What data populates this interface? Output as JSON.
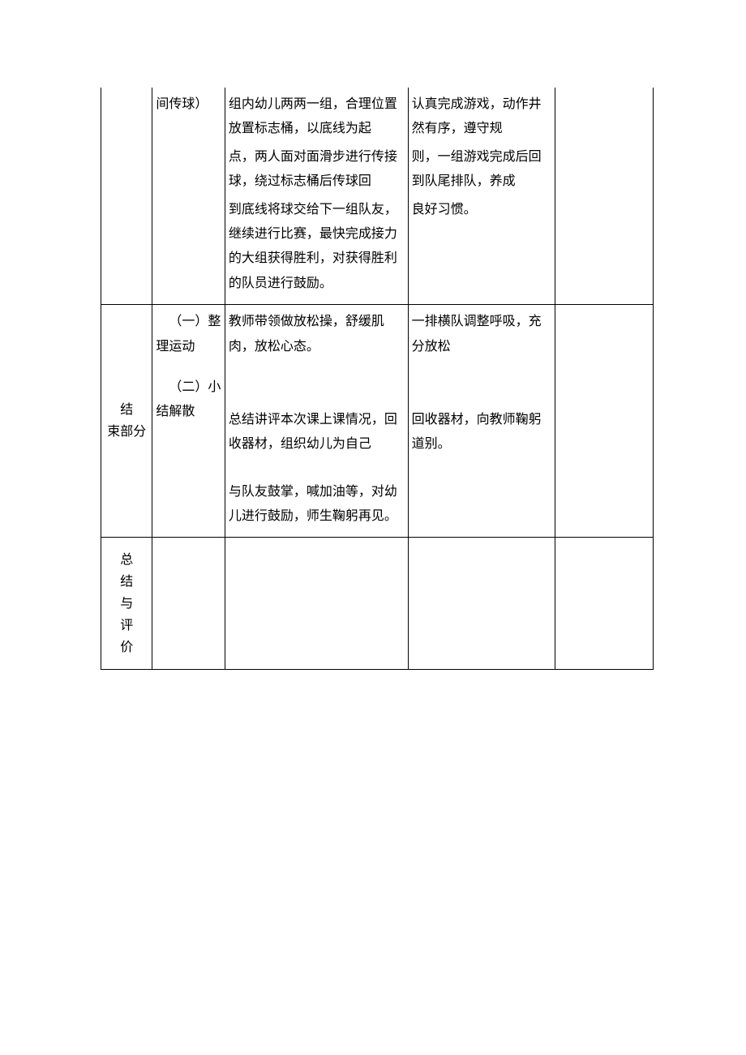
{
  "table": {
    "row1": {
      "col2": "间传球）",
      "col3_p1": "组内幼儿两两一组，合理位置放置标志桶，以底线为起",
      "col3_p2": "点，两人面对面滑步进行传接球，绕过标志桶后传球回",
      "col3_p3": "到底线将球交给下一组队友，继续进行比赛，最快完成接力的大组获得胜利，对获得胜利的队员进行鼓励。",
      "col4_p1": "认真完成游戏，动作井然有序，遵守规",
      "col4_p2": "则，一组游戏完成后回到队尾排队，养成",
      "col4_p3": "良好习惯。"
    },
    "row2": {
      "col1_line1": "结",
      "col1_line2": "束部分",
      "sec1_label": "（一）整理运动",
      "sec1_col3": "教师带领做放松操，舒缓肌肉，放松心态。",
      "sec1_col4": "一排横队调整呼吸，充分放松",
      "sec2_label": "（二）小结解散",
      "sec2_col3_p1": "总结讲评本次课上课情况，回收器材，组织幼儿为自己",
      "sec2_col3_p2": "与队友鼓掌，喊加油等，对幼儿进行鼓励，师生鞠躬再见。",
      "sec2_col4": "回收器材，向教师鞠躬道别。"
    },
    "row3": {
      "col1": "总结与评价"
    }
  }
}
